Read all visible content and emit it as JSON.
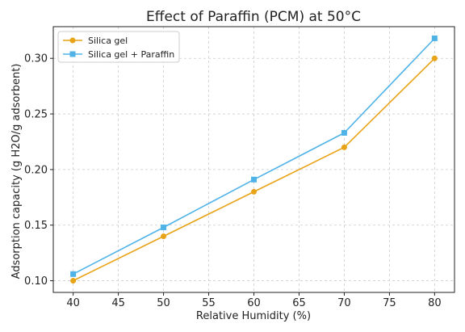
{
  "chart_data": {
    "type": "line",
    "title": "Effect of Paraffin (PCM) at 50°C",
    "xlabel": "Relative Humidity (%)",
    "ylabel": "Adsorption capacity (g H2O/g adsorbent)",
    "xlim": [
      37.8,
      82.2
    ],
    "ylim": [
      0.0895,
      0.3285
    ],
    "x_ticks": [
      40,
      45,
      50,
      55,
      60,
      65,
      70,
      75,
      80
    ],
    "y_ticks": [
      0.1,
      0.15,
      0.2,
      0.25,
      0.3
    ],
    "x_tick_labels": [
      "40",
      "45",
      "50",
      "55",
      "60",
      "65",
      "70",
      "75",
      "80"
    ],
    "y_tick_labels": [
      "0.10",
      "0.15",
      "0.20",
      "0.25",
      "0.30"
    ],
    "grid": true,
    "legend_position": "top-left",
    "x": [
      40,
      50,
      60,
      70,
      80
    ],
    "series": [
      {
        "name": "Silica gel",
        "values": [
          0.1,
          0.14,
          0.18,
          0.22,
          0.3
        ],
        "color": "#E8A317",
        "marker": "circle"
      },
      {
        "name": "Silica gel + Paraffin",
        "values": [
          0.106,
          0.148,
          0.191,
          0.233,
          0.318
        ],
        "color": "#4FB3E8",
        "marker": "square"
      }
    ]
  }
}
